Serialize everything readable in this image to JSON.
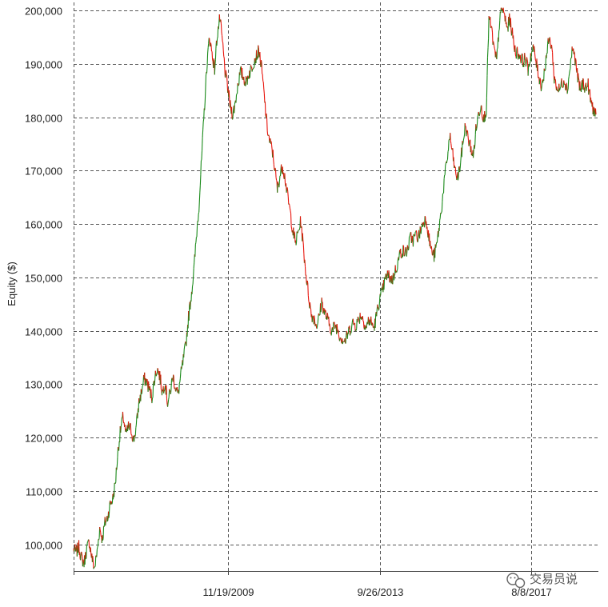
{
  "chart_data": {
    "type": "line",
    "ylabel": "Equity ($)",
    "xlabel": "",
    "title": "",
    "ylim": [
      95000,
      201500
    ],
    "y_ticks": [
      100000,
      110000,
      120000,
      130000,
      140000,
      150000,
      160000,
      170000,
      180000,
      190000,
      200000
    ],
    "y_tick_labels": [
      "100,000",
      "110,000",
      "120,000",
      "130,000",
      "140,000",
      "150,000",
      "160,000",
      "170,000",
      "180,000",
      "190,000",
      "200,000"
    ],
    "x_tick_labels": [
      "11/19/2009",
      "9/26/2013",
      "8/8/2017"
    ],
    "grid": true,
    "up_color": "#1a8a1a",
    "down_color": "#e8140c",
    "series": [
      {
        "values": [
          99000,
          98500,
          99500,
          97500,
          96500,
          99000,
          100500,
          97500,
          95500,
          98500,
          103000,
          101000,
          104000,
          105000,
          107500,
          108500,
          111500,
          117500,
          121500,
          124000,
          120500,
          122000,
          121500,
          119500,
          122000,
          126500,
          128500,
          131000,
          130500,
          129000,
          127500,
          131000,
          133000,
          131500,
          128500,
          130500,
          126500,
          128500,
          131500,
          129500,
          128000,
          131500,
          134500,
          137500,
          142500,
          146500,
          151000,
          157500,
          163500,
          172000,
          181000,
          189500,
          195000,
          192000,
          189000,
          195500,
          198500,
          194000,
          188500,
          185500,
          182000,
          180500,
          183000,
          186500,
          188500,
          187500,
          186500,
          188000,
          189000,
          190500,
          191500,
          192500,
          189000,
          184000,
          178500,
          175500,
          174000,
          170500,
          166500,
          169000,
          171000,
          168500,
          165000,
          162000,
          158500,
          156500,
          158500,
          160500,
          155500,
          150500,
          146500,
          143000,
          142500,
          141000,
          142500,
          145500,
          143500,
          142500,
          141000,
          140000,
          141000,
          140500,
          139000,
          138500,
          138000,
          139500,
          140500,
          141500,
          141000,
          142000,
          143000,
          142000,
          140500,
          142000,
          141500,
          140500,
          143000,
          145500,
          147000,
          149000,
          150500,
          150000,
          149500,
          151000,
          152500,
          154500,
          155000,
          154500,
          155500,
          157500,
          157000,
          158000,
          157500,
          159000,
          160500,
          161000,
          157500,
          155000,
          154000,
          156000,
          159500,
          163500,
          168500,
          172000,
          176500,
          173500,
          170000,
          168500,
          171000,
          175000,
          178500,
          176000,
          174500,
          172500,
          177500,
          180500,
          182500,
          179500,
          181500,
          198500,
          196500,
          192500,
          190500,
          197500,
          200500,
          199000,
          196500,
          198500,
          195500,
          192500,
          192000,
          191500,
          190500,
          191000,
          189000,
          191500,
          193000,
          190500,
          188000,
          186000,
          187500,
          191500,
          194500,
          193500,
          187500,
          185500,
          185000,
          186500,
          187000,
          185000,
          189000,
          193000,
          191000,
          187500,
          185000,
          186500,
          185500,
          186000,
          183000,
          181500,
          180500
        ]
      }
    ]
  },
  "watermark": {
    "text": "交易员说",
    "icon": "wechat-icon"
  }
}
